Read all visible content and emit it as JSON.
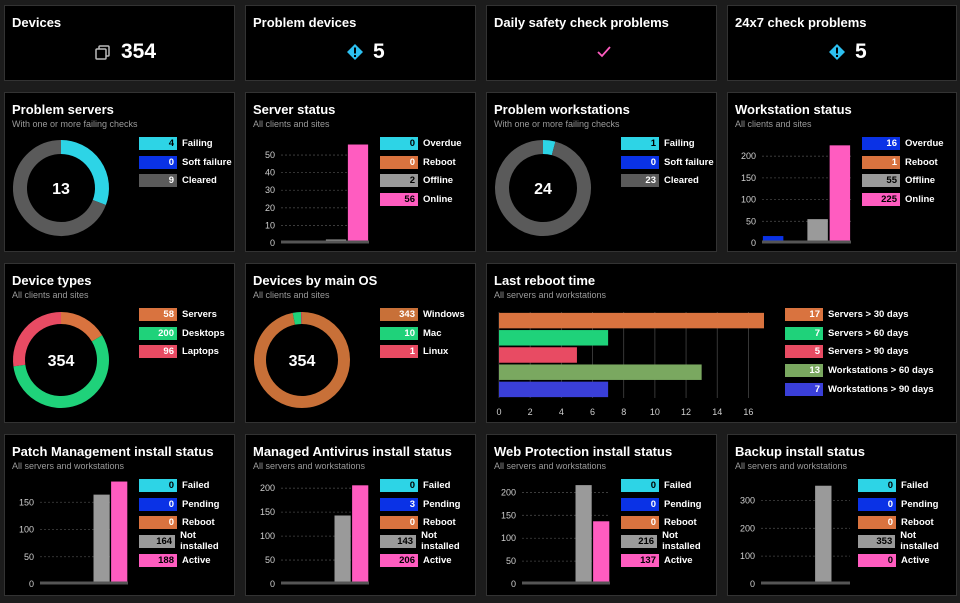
{
  "colors": {
    "cyan": "#2dd4e6",
    "blue": "#0a32e6",
    "gray": "#5a5a5a",
    "lightgray": "#9a9a9a",
    "orange": "#d9733f",
    "pink": "#ff5cc0",
    "green": "#1fd27a",
    "red": "#e84b63",
    "olive": "#7aa860",
    "indigo": "#3a3fd8",
    "brown": "#c87038"
  },
  "row1": [
    {
      "title": "Devices",
      "value": "354",
      "icon": "devices-icon"
    },
    {
      "title": "Problem devices",
      "value": "5",
      "icon": "warning-diamond-icon"
    },
    {
      "title": "Daily safety check problems",
      "value": "",
      "icon": "checkmark-icon"
    },
    {
      "title": "24x7 check problems",
      "value": "5",
      "icon": "warning-diamond-icon"
    }
  ],
  "problem_servers": {
    "title": "Problem servers",
    "subtitle": "With one or more failing checks",
    "center": "13",
    "items": [
      {
        "label": "Failing",
        "value": "4",
        "color": "#2dd4e6"
      },
      {
        "label": "Soft failure",
        "value": "0",
        "color": "#0a32e6"
      },
      {
        "label": "Cleared",
        "value": "9",
        "color": "#5a5a5a"
      }
    ]
  },
  "server_status": {
    "title": "Server status",
    "subtitle": "All clients and sites",
    "items": [
      {
        "label": "Overdue",
        "value": "0",
        "color": "#2dd4e6"
      },
      {
        "label": "Reboot",
        "value": "0",
        "color": "#d9733f"
      },
      {
        "label": "Offline",
        "value": "2",
        "color": "#9a9a9a"
      },
      {
        "label": "Online",
        "value": "56",
        "color": "#ff5cc0"
      }
    ]
  },
  "problem_workstations": {
    "title": "Problem workstations",
    "subtitle": "With one or more failing checks",
    "center": "24",
    "items": [
      {
        "label": "Failing",
        "value": "1",
        "color": "#2dd4e6"
      },
      {
        "label": "Soft failure",
        "value": "0",
        "color": "#0a32e6"
      },
      {
        "label": "Cleared",
        "value": "23",
        "color": "#5a5a5a"
      }
    ]
  },
  "workstation_status": {
    "title": "Workstation status",
    "subtitle": "All clients and sites",
    "items": [
      {
        "label": "Overdue",
        "value": "16",
        "color": "#0a32e6"
      },
      {
        "label": "Reboot",
        "value": "1",
        "color": "#d9733f"
      },
      {
        "label": "Offline",
        "value": "55",
        "color": "#9a9a9a"
      },
      {
        "label": "Online",
        "value": "225",
        "color": "#ff5cc0"
      }
    ]
  },
  "device_types": {
    "title": "Device types",
    "subtitle": "All clients and sites",
    "center": "354",
    "items": [
      {
        "label": "Servers",
        "value": "58",
        "color": "#d9733f"
      },
      {
        "label": "Desktops",
        "value": "200",
        "color": "#1fd27a"
      },
      {
        "label": "Laptops",
        "value": "96",
        "color": "#e84b63"
      }
    ]
  },
  "devices_by_os": {
    "title": "Devices by main OS",
    "subtitle": "All clients and sites",
    "center": "354",
    "items": [
      {
        "label": "Windows",
        "value": "343",
        "color": "#c87038"
      },
      {
        "label": "Mac",
        "value": "10",
        "color": "#1fd27a"
      },
      {
        "label": "Linux",
        "value": "1",
        "color": "#e84b63"
      }
    ]
  },
  "last_reboot": {
    "title": "Last reboot time",
    "subtitle": "All servers and workstations",
    "items": [
      {
        "label": "Servers > 30 days",
        "value": "17",
        "color": "#d9733f"
      },
      {
        "label": "Servers > 60 days",
        "value": "7",
        "color": "#1fd27a"
      },
      {
        "label": "Servers > 90 days",
        "value": "5",
        "color": "#e84b63"
      },
      {
        "label": "Workstations > 60 days",
        "value": "13",
        "color": "#7aa860"
      },
      {
        "label": "Workstations > 90 days",
        "value": "7",
        "color": "#3a3fd8"
      }
    ]
  },
  "patch": {
    "title": "Patch Management install status",
    "subtitle": "All servers and workstations",
    "items": [
      {
        "label": "Failed",
        "value": "0",
        "color": "#2dd4e6"
      },
      {
        "label": "Pending",
        "value": "0",
        "color": "#0a32e6"
      },
      {
        "label": "Reboot",
        "value": "0",
        "color": "#d9733f"
      },
      {
        "label": "Not installed",
        "value": "164",
        "color": "#9a9a9a"
      },
      {
        "label": "Active",
        "value": "188",
        "color": "#ff5cc0"
      }
    ]
  },
  "antivirus": {
    "title": "Managed Antivirus install status",
    "subtitle": "All servers and workstations",
    "items": [
      {
        "label": "Failed",
        "value": "0",
        "color": "#2dd4e6"
      },
      {
        "label": "Pending",
        "value": "3",
        "color": "#0a32e6"
      },
      {
        "label": "Reboot",
        "value": "0",
        "color": "#d9733f"
      },
      {
        "label": "Not installed",
        "value": "143",
        "color": "#9a9a9a"
      },
      {
        "label": "Active",
        "value": "206",
        "color": "#ff5cc0"
      }
    ]
  },
  "web": {
    "title": "Web Protection install status",
    "subtitle": "All servers and workstations",
    "items": [
      {
        "label": "Failed",
        "value": "0",
        "color": "#2dd4e6"
      },
      {
        "label": "Pending",
        "value": "0",
        "color": "#0a32e6"
      },
      {
        "label": "Reboot",
        "value": "0",
        "color": "#d9733f"
      },
      {
        "label": "Not installed",
        "value": "216",
        "color": "#9a9a9a"
      },
      {
        "label": "Active",
        "value": "137",
        "color": "#ff5cc0"
      }
    ]
  },
  "backup": {
    "title": "Backup install status",
    "subtitle": "All servers and workstations",
    "items": [
      {
        "label": "Failed",
        "value": "0",
        "color": "#2dd4e6"
      },
      {
        "label": "Pending",
        "value": "0",
        "color": "#0a32e6"
      },
      {
        "label": "Reboot",
        "value": "0",
        "color": "#d9733f"
      },
      {
        "label": "Not installed",
        "value": "353",
        "color": "#9a9a9a"
      },
      {
        "label": "Active",
        "value": "0",
        "color": "#ff5cc0"
      }
    ]
  },
  "chart_data": [
    {
      "type": "pie",
      "title": "Problem servers",
      "categories": [
        "Failing",
        "Soft failure",
        "Cleared"
      ],
      "values": [
        4,
        0,
        9
      ]
    },
    {
      "type": "bar",
      "title": "Server status",
      "categories": [
        "Overdue",
        "Reboot",
        "Offline",
        "Online"
      ],
      "values": [
        0,
        0,
        2,
        56
      ],
      "ylim": [
        0,
        58
      ],
      "yticks": [
        0,
        10,
        20,
        30,
        40,
        50
      ]
    },
    {
      "type": "pie",
      "title": "Problem workstations",
      "categories": [
        "Failing",
        "Soft failure",
        "Cleared"
      ],
      "values": [
        1,
        0,
        23
      ]
    },
    {
      "type": "bar",
      "title": "Workstation status",
      "categories": [
        "Overdue",
        "Reboot",
        "Offline",
        "Online"
      ],
      "values": [
        16,
        1,
        55,
        225
      ],
      "ylim": [
        0,
        235
      ],
      "yticks": [
        0,
        50,
        100,
        150,
        200
      ]
    },
    {
      "type": "pie",
      "title": "Device types",
      "categories": [
        "Servers",
        "Desktops",
        "Laptops"
      ],
      "values": [
        58,
        200,
        96
      ]
    },
    {
      "type": "pie",
      "title": "Devices by main OS",
      "categories": [
        "Windows",
        "Mac",
        "Linux"
      ],
      "values": [
        343,
        10,
        1
      ]
    },
    {
      "type": "bar",
      "orientation": "horizontal",
      "title": "Last reboot time",
      "categories": [
        "Servers > 30 days",
        "Servers > 60 days",
        "Servers > 90 days",
        "Workstations > 60 days",
        "Workstations > 90 days"
      ],
      "values": [
        17,
        7,
        5,
        13,
        7
      ],
      "xlim": [
        0,
        17
      ],
      "xticks": [
        0,
        2,
        4,
        6,
        8,
        10,
        12,
        14,
        16
      ]
    },
    {
      "type": "bar",
      "title": "Patch Management install status",
      "categories": [
        "Failed",
        "Pending",
        "Reboot",
        "Not installed",
        "Active"
      ],
      "values": [
        0,
        0,
        0,
        164,
        188
      ],
      "ylim": [
        0,
        200
      ],
      "yticks": [
        0,
        50,
        100,
        150
      ]
    },
    {
      "type": "bar",
      "title": "Managed Antivirus install status",
      "categories": [
        "Failed",
        "Pending",
        "Reboot",
        "Not installed",
        "Active"
      ],
      "values": [
        0,
        3,
        0,
        143,
        206
      ],
      "ylim": [
        0,
        215
      ],
      "yticks": [
        0,
        50,
        100,
        150,
        200
      ]
    },
    {
      "type": "bar",
      "title": "Web Protection install status",
      "categories": [
        "Failed",
        "Pending",
        "Reboot",
        "Not installed",
        "Active"
      ],
      "values": [
        0,
        0,
        0,
        216,
        137
      ],
      "ylim": [
        0,
        225
      ],
      "yticks": [
        0,
        50,
        100,
        150,
        200
      ]
    },
    {
      "type": "bar",
      "title": "Backup install status",
      "categories": [
        "Failed",
        "Pending",
        "Reboot",
        "Not installed",
        "Active"
      ],
      "values": [
        0,
        0,
        0,
        353,
        0
      ],
      "ylim": [
        0,
        370
      ],
      "yticks": [
        0,
        100,
        200,
        300
      ]
    }
  ]
}
